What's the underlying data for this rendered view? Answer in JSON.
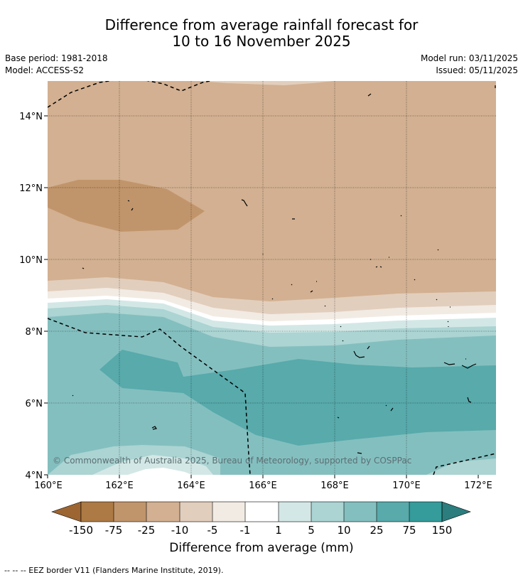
{
  "header": {
    "title_line1": "Difference from average rainfall forecast for",
    "title_line2": "10 to 16 November 2025"
  },
  "meta": {
    "base_period": "Base period: 1981-2018",
    "model": "Model: ACCESS-S2",
    "model_run": "Model run: 03/11/2025",
    "issued": "Issued: 05/11/2025"
  },
  "map": {
    "lat_labels": [
      "14°N",
      "12°N",
      "10°N",
      "8°N",
      "6°N",
      "4°N"
    ],
    "lon_labels": [
      "160°E",
      "162°E",
      "164°E",
      "166°E",
      "168°E",
      "170°E",
      "172°E"
    ],
    "copyright": "© Commonwealth of Australia 2025, Bureau of Meteorology, supported by COSPPac"
  },
  "colorbar": {
    "title": "Difference from average (mm)",
    "tick_labels": [
      "-150",
      "-75",
      "-25",
      "-10",
      "-5",
      "-1",
      "1",
      "5",
      "10",
      "25",
      "75",
      "150"
    ],
    "colors": {
      "lt_minus150": "#9c6531",
      "minus150_to_minus75": "#ad7a45",
      "minus75_to_minus25": "#c1956b",
      "minus25_to_minus10": "#d2b091",
      "minus10_to_minus5": "#e2cebd",
      "minus5_to_minus1": "#f2ebe4",
      "minus1_to_1": "#ffffff",
      "1_to_5": "#d3e8e6",
      "5_to_10": "#abd4d3",
      "10_to_25": "#84bfbf",
      "25_to_75": "#58aaab",
      "75_to_150": "#359c9b",
      "gt_150": "#2b7d7e"
    }
  },
  "footnote": "-- -- -- EEZ border V11 (Flanders Marine Institute, 2019)."
}
